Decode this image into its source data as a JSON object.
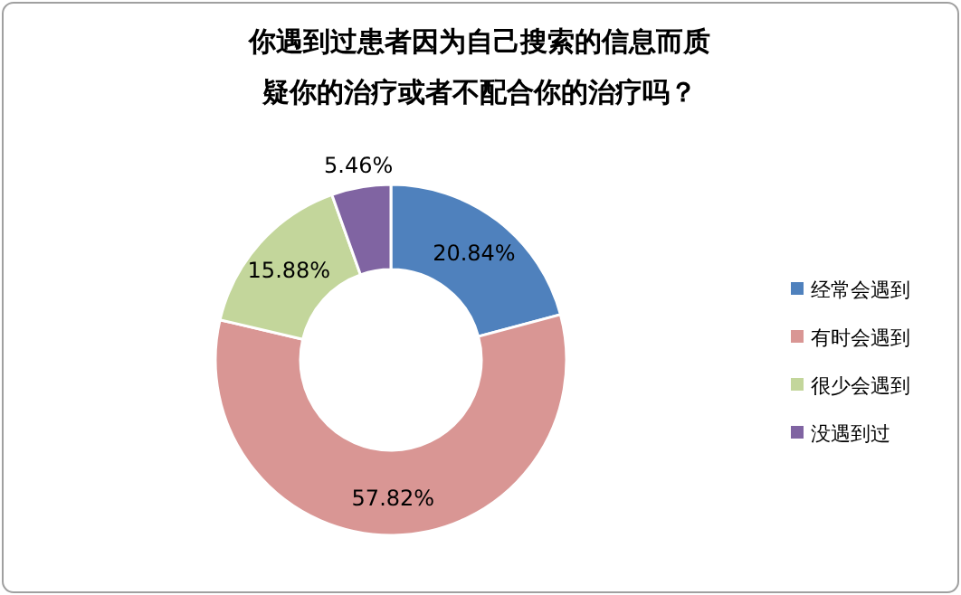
{
  "chart_data": {
    "type": "donut",
    "title": "你遇到过患者因为自己搜索的信息而质疑你的治疗或者不配合你的治疗吗？",
    "categories": [
      "经常会遇到",
      "有时会遇到",
      "很少会遇到",
      "没遇到过"
    ],
    "values": [
      20.84,
      57.82,
      15.88,
      5.46
    ],
    "colors": [
      "#4f81bd",
      "#d99694",
      "#c3d69b",
      "#8064a2"
    ],
    "value_labels": [
      "20.84%",
      "57.82%",
      "15.88%",
      "5.46%"
    ],
    "legend": "right"
  }
}
